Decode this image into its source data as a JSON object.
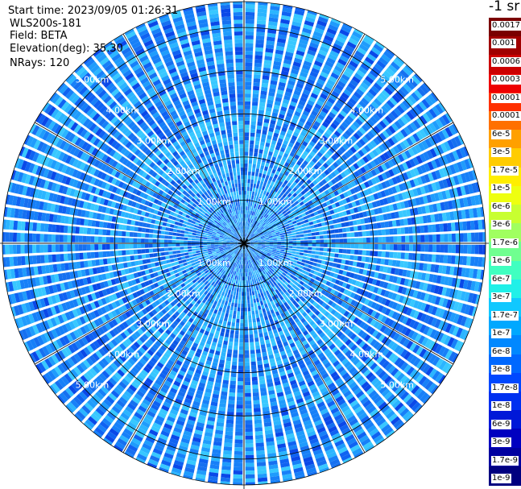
{
  "info": {
    "start_time": "Start time: 2023/09/05 01:26:31",
    "instrument": "WLS200s-181",
    "field": "Field: BETA",
    "elevation": "Elevation(deg): 35.30",
    "nrays": "NRays: 120"
  },
  "colorbar": {
    "title": "-1 sr",
    "labels": [
      "0.0017",
      "0.001",
      "0.0006",
      "0.0003",
      "0.00017",
      "0.0001",
      "6e-5",
      "3e-5",
      "1.7e-5",
      "1e-5",
      "6e-6",
      "3e-6",
      "1.7e-6",
      "1e-6",
      "6e-7",
      "3e-7",
      "1.7e-7",
      "1e-7",
      "6e-8",
      "3e-8",
      "1.7e-8",
      "1e-8",
      "6e-9",
      "3e-9",
      "1.7e-9",
      "1e-9"
    ],
    "colors": [
      "#7a0000",
      "#a00000",
      "#cc0000",
      "#ee0000",
      "#ff3000",
      "#ff7000",
      "#ffa000",
      "#ffcc00",
      "#ffee00",
      "#eeff10",
      "#c8ff30",
      "#a0ff60",
      "#70ff90",
      "#40ffc0",
      "#20f0e8",
      "#10c8ff",
      "#00a8ff",
      "#0088ff",
      "#0068ff",
      "#0048ff",
      "#0030f0",
      "#0018d8",
      "#0000c0",
      "#0000a0",
      "#000080"
    ]
  },
  "chart_data": {
    "type": "heatmap",
    "projection": "polar PPI scan",
    "field": "BETA",
    "units": "-1 sr",
    "nrays": 120,
    "elevation_deg": 35.3,
    "range_rings": [
      {
        "range_km": 1.0,
        "label": "1.00km"
      },
      {
        "range_km": 2.0,
        "label": "2.00km"
      },
      {
        "range_km": 3.0,
        "label": "3.00km"
      },
      {
        "range_km": 4.0,
        "label": "4.00km"
      },
      {
        "range_km": 5.0,
        "label": "5.00km"
      }
    ],
    "max_range_km": 5.6,
    "azimuth_lines_deg": [
      0,
      30,
      60,
      90,
      120,
      150,
      180,
      210,
      240,
      270,
      300,
      330
    ],
    "color_scale": "log",
    "value_range": [
      1e-09,
      0.0017
    ],
    "dominant_value_range": [
      3e-08,
      6e-07
    ],
    "gridlines": true
  }
}
